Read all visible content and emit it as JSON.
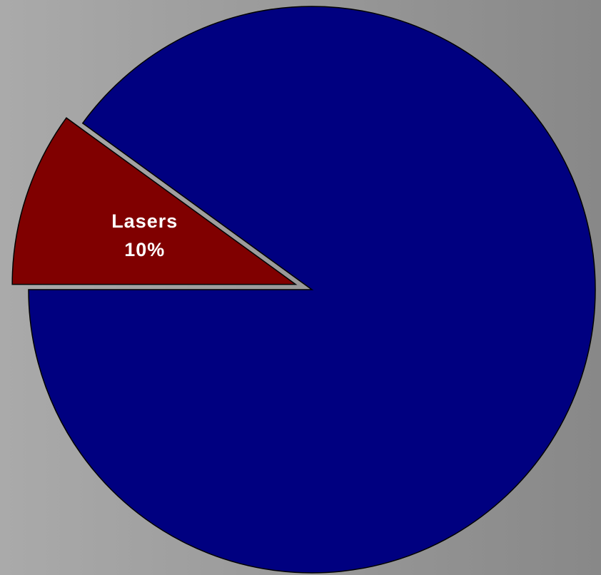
{
  "chart_data": {
    "type": "pie",
    "categories": [
      "Lasers",
      null
    ],
    "values": [
      10,
      90
    ],
    "value_labels": [
      "10%",
      null
    ],
    "colors": [
      "#800000",
      "#000080"
    ],
    "explode": [
      true,
      false
    ]
  }
}
